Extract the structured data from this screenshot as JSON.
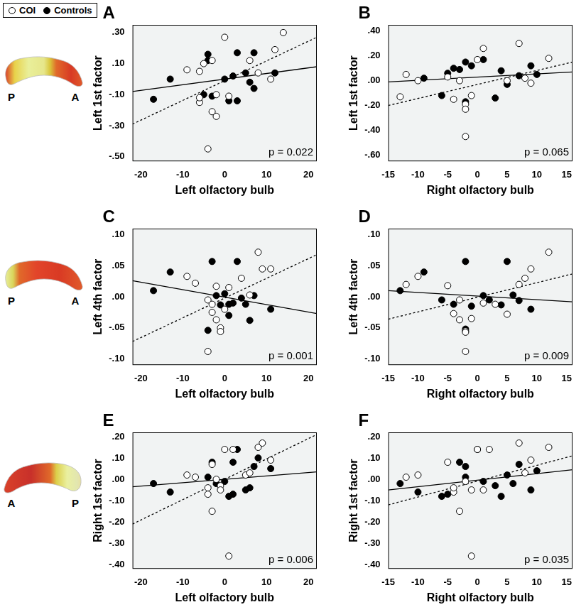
{
  "figure": {
    "legend": [
      {
        "name": "COI",
        "marker": "open_circle"
      },
      {
        "name": "Controls",
        "marker": "filled_circle"
      }
    ],
    "maps": [
      {
        "left": "P",
        "right": "A"
      },
      {
        "left": "P",
        "right": "A"
      },
      {
        "left": "A",
        "right": "P"
      }
    ]
  },
  "chart_data": [
    {
      "type": "scatter",
      "panel": "A",
      "annotation": "p = 0.022",
      "x_label": "Left olfactory bulb",
      "y_label": "Left 1st factor",
      "grid": false,
      "xlim": [
        -22,
        22
      ],
      "xticks": [
        -20,
        -10,
        0,
        10,
        20
      ],
      "ylim": [
        -0.53,
        0.35
      ],
      "yticks": [
        {
          "value": -0.5,
          "label": "-.50"
        },
        {
          "value": -0.3,
          "label": "-.30"
        },
        {
          "value": -0.1,
          "label": "-.10"
        },
        {
          "value": 0.1,
          "label": ".10"
        },
        {
          "value": 0.3,
          "label": ".30"
        }
      ],
      "series": [
        {
          "name": "COI",
          "marker": "open_circle",
          "color": "#000000",
          "x": [
            0,
            14,
            12,
            -6,
            -9,
            -5,
            -3,
            6,
            -6,
            -6,
            -3,
            -2,
            -2,
            1,
            -4,
            8,
            11
          ],
          "values": [
            0.27,
            0.3,
            0.19,
            0.05,
            0.06,
            0.1,
            0.12,
            0.12,
            -0.15,
            -0.12,
            -0.21,
            -0.24,
            -0.1,
            -0.11,
            -0.45,
            0.04,
            0.0
          ]
        },
        {
          "name": "Controls",
          "marker": "filled_circle",
          "color": "#000000",
          "x": [
            -17,
            -13,
            -5,
            -4,
            -4,
            -3,
            0,
            1,
            3,
            3,
            2,
            5,
            6,
            7,
            7,
            12
          ],
          "values": [
            -0.13,
            0.0,
            -0.1,
            0.16,
            0.12,
            -0.11,
            0.0,
            -0.14,
            -0.14,
            0.17,
            0.02,
            0.04,
            -0.02,
            -0.06,
            0.17,
            0.04
          ]
        },
        {
          "type": "line",
          "line_style": "dotted",
          "color": "#000000",
          "x": [
            -22,
            22
          ],
          "values": [
            -0.29,
            0.27
          ]
        },
        {
          "type": "line",
          "line_style": "solid",
          "color": "#000000",
          "x": [
            -22,
            22
          ],
          "values": [
            -0.08,
            0.08
          ]
        }
      ]
    },
    {
      "type": "scatter",
      "panel": "B",
      "annotation": "p = 0.065",
      "x_label": "Right olfactory bulb",
      "y_label": "Left 1st factor",
      "grid": false,
      "xlim": [
        -15,
        16
      ],
      "xticks": [
        -15,
        -10,
        -5,
        0,
        5,
        10,
        15
      ],
      "ylim": [
        -0.65,
        0.45
      ],
      "yticks": [
        {
          "value": -0.6,
          "label": "-.60"
        },
        {
          "value": -0.4,
          "label": "-.40"
        },
        {
          "value": -0.2,
          "label": "-.20"
        },
        {
          "value": 0,
          "label": ".00"
        },
        {
          "value": 0.2,
          "label": ".20"
        },
        {
          "value": 0.4,
          "label": ".40"
        }
      ],
      "series": [
        {
          "name": "COI",
          "marker": "open_circle",
          "color": "#000000",
          "x": [
            -13,
            -12,
            -10,
            -5,
            -4,
            -3,
            -2,
            -2,
            -2,
            0,
            1,
            5,
            7,
            8,
            9,
            12,
            -1
          ],
          "values": [
            -0.13,
            0.05,
            0.0,
            0.03,
            -0.15,
            0.0,
            -0.19,
            -0.23,
            -0.45,
            0.17,
            0.26,
            0.0,
            0.3,
            0.02,
            -0.02,
            0.18,
            -0.12
          ]
        },
        {
          "name": "Controls",
          "marker": "filled_circle",
          "color": "#000000",
          "x": [
            -9,
            -6,
            -4,
            -5,
            -2,
            -2,
            -1,
            1,
            3,
            4,
            5,
            7,
            9,
            10,
            -3
          ],
          "values": [
            0.02,
            -0.12,
            0.1,
            0.06,
            0.15,
            -0.17,
            0.12,
            0.17,
            -0.14,
            0.08,
            -0.03,
            0.04,
            0.12,
            0.05,
            0.09
          ]
        },
        {
          "type": "line",
          "line_style": "dotted",
          "color": "#000000",
          "x": [
            -15,
            16
          ],
          "values": [
            -0.2,
            0.15
          ]
        },
        {
          "type": "line",
          "line_style": "solid",
          "color": "#000000",
          "x": [
            -15,
            16
          ],
          "values": [
            -0.01,
            0.07
          ]
        }
      ]
    },
    {
      "type": "scatter",
      "panel": "C",
      "annotation": "p = 0.001",
      "x_label": "Left olfactory bulb",
      "y_label": "Left 4th factor",
      "grid": false,
      "xlim": [
        -22,
        22
      ],
      "xticks": [
        -20,
        -10,
        0,
        10,
        20
      ],
      "ylim": [
        -0.11,
        0.11
      ],
      "yticks": [
        {
          "value": -0.1,
          "label": "-.10"
        },
        {
          "value": -0.05,
          "label": "-.05"
        },
        {
          "value": 0,
          "label": ".00"
        },
        {
          "value": 0.05,
          "label": ".05"
        },
        {
          "value": 0.1,
          "label": ".10"
        }
      ],
      "series": [
        {
          "name": "COI",
          "marker": "open_circle",
          "color": "#000000",
          "x": [
            -9,
            -7,
            -4,
            -3,
            -2,
            -2,
            -1,
            -1,
            -4,
            1,
            4,
            6,
            8,
            9,
            11,
            -3,
            0
          ],
          "values": [
            0.033,
            0.022,
            -0.005,
            -0.012,
            0.017,
            -0.037,
            -0.05,
            -0.056,
            -0.088,
            0.015,
            0.03,
            0.003,
            0.072,
            0.045,
            0.045,
            -0.025,
            -0.02
          ]
        },
        {
          "name": "Controls",
          "marker": "filled_circle",
          "color": "#000000",
          "x": [
            -17,
            -13,
            -4,
            -3,
            -2,
            0,
            1,
            1,
            2,
            3,
            4,
            5,
            6,
            7,
            11,
            -1
          ],
          "values": [
            0.01,
            0.04,
            -0.054,
            0.057,
            0.002,
            0.005,
            -0.012,
            -0.03,
            -0.01,
            0.057,
            -0.002,
            -0.012,
            -0.038,
            0.002,
            -0.02,
            -0.013
          ]
        },
        {
          "type": "line",
          "line_style": "dotted",
          "color": "#000000",
          "x": [
            -22,
            22
          ],
          "values": [
            -0.072,
            0.068
          ]
        },
        {
          "type": "line",
          "line_style": "solid",
          "color": "#000000",
          "x": [
            -22,
            22
          ],
          "values": [
            0.026,
            -0.027
          ]
        }
      ]
    },
    {
      "type": "scatter",
      "panel": "D",
      "annotation": "p = 0.009",
      "x_label": "Right olfactory bulb",
      "y_label": "Left 4th factor",
      "grid": false,
      "xlim": [
        -15,
        16
      ],
      "xticks": [
        -15,
        -10,
        -5,
        0,
        5,
        10,
        15
      ],
      "ylim": [
        -0.11,
        0.11
      ],
      "yticks": [
        {
          "value": -0.1,
          "label": "-.10"
        },
        {
          "value": -0.05,
          "label": "-.05"
        },
        {
          "value": 0,
          "label": ".00"
        },
        {
          "value": 0.05,
          "label": ".05"
        },
        {
          "value": 0.1,
          "label": ".10"
        }
      ],
      "series": [
        {
          "name": "COI",
          "marker": "open_circle",
          "color": "#000000",
          "x": [
            -12,
            -10,
            -5,
            -4,
            -3,
            -3,
            -2,
            -2,
            -2,
            -1,
            1,
            3,
            5,
            7,
            8,
            9,
            12
          ],
          "values": [
            0.02,
            0.033,
            0.018,
            -0.027,
            -0.005,
            -0.037,
            -0.055,
            -0.057,
            -0.088,
            -0.035,
            -0.01,
            -0.012,
            -0.028,
            0.02,
            0.03,
            0.045,
            0.072
          ]
        },
        {
          "name": "Controls",
          "marker": "filled_circle",
          "color": "#000000",
          "x": [
            -13,
            -9,
            -6,
            -4,
            -2,
            -2,
            -1,
            1,
            2,
            4,
            5,
            6,
            7,
            9
          ],
          "values": [
            0.01,
            0.04,
            -0.005,
            -0.012,
            0.057,
            -0.052,
            -0.015,
            0.002,
            -0.005,
            -0.013,
            0.057,
            0.003,
            -0.006,
            -0.02
          ]
        },
        {
          "type": "line",
          "line_style": "dotted",
          "color": "#000000",
          "x": [
            -15,
            16
          ],
          "values": [
            -0.036,
            0.037
          ]
        },
        {
          "type": "line",
          "line_style": "solid",
          "color": "#000000",
          "x": [
            -15,
            16
          ],
          "values": [
            0.01,
            -0.008
          ]
        }
      ]
    },
    {
      "type": "scatter",
      "panel": "E",
      "annotation": "p = 0.006",
      "x_label": "Left olfactory bulb",
      "y_label": "Right 1st factor",
      "grid": false,
      "xlim": [
        -22,
        22
      ],
      "xticks": [
        -20,
        -10,
        0,
        10,
        20
      ],
      "ylim": [
        -0.42,
        0.22
      ],
      "yticks": [
        {
          "value": -0.4,
          "label": "-.40"
        },
        {
          "value": -0.3,
          "label": "-.30"
        },
        {
          "value": -0.2,
          "label": "-.20"
        },
        {
          "value": -0.1,
          "label": "-.10"
        },
        {
          "value": 0,
          "label": ".00"
        },
        {
          "value": 0.1,
          "label": ".10"
        },
        {
          "value": 0.2,
          "label": ".20"
        }
      ],
      "series": [
        {
          "name": "COI",
          "marker": "open_circle",
          "color": "#000000",
          "x": [
            -9,
            -7,
            -4,
            -4,
            -3,
            -3,
            -1,
            0,
            1,
            2,
            5,
            6,
            8,
            9,
            11,
            -2,
            -1
          ],
          "values": [
            0.02,
            0.01,
            -0.04,
            -0.07,
            0.07,
            -0.15,
            -0.03,
            0.14,
            -0.36,
            0.14,
            0.02,
            0.03,
            0.15,
            0.17,
            0.09,
            0.0,
            -0.05
          ]
        },
        {
          "name": "Controls",
          "marker": "filled_circle",
          "color": "#000000",
          "x": [
            -17,
            -13,
            -4,
            -3,
            -2,
            0,
            1,
            2,
            2,
            3,
            5,
            6,
            7,
            8,
            11
          ],
          "values": [
            -0.02,
            -0.06,
            0.01,
            0.08,
            -0.02,
            -0.01,
            -0.08,
            -0.07,
            0.08,
            0.14,
            -0.05,
            -0.04,
            0.06,
            0.1,
            0.05
          ]
        },
        {
          "type": "line",
          "line_style": "dotted",
          "color": "#000000",
          "x": [
            -22,
            22
          ],
          "values": [
            -0.21,
            0.21
          ]
        },
        {
          "type": "line",
          "line_style": "solid",
          "color": "#000000",
          "x": [
            -22,
            22
          ],
          "values": [
            -0.035,
            0.035
          ]
        }
      ]
    },
    {
      "type": "scatter",
      "panel": "F",
      "annotation": "p = 0.035",
      "x_label": "Right olfactory bulb",
      "y_label": "Right 1st factor",
      "grid": false,
      "xlim": [
        -15,
        16
      ],
      "xticks": [
        -15,
        -10,
        -5,
        0,
        5,
        10,
        15
      ],
      "ylim": [
        -0.42,
        0.22
      ],
      "yticks": [
        {
          "value": -0.4,
          "label": "-.40"
        },
        {
          "value": -0.3,
          "label": "-.30"
        },
        {
          "value": -0.2,
          "label": "-.20"
        },
        {
          "value": -0.1,
          "label": "-.10"
        },
        {
          "value": 0,
          "label": ".00"
        },
        {
          "value": 0.1,
          "label": ".10"
        },
        {
          "value": 0.2,
          "label": ".20"
        }
      ],
      "series": [
        {
          "name": "COI",
          "marker": "open_circle",
          "color": "#000000",
          "x": [
            -12,
            -10,
            -5,
            -4,
            -4,
            -3,
            -2,
            -1,
            -1,
            0,
            2,
            7,
            8,
            9,
            12,
            1
          ],
          "values": [
            0.01,
            0.02,
            0.08,
            -0.06,
            -0.04,
            -0.15,
            -0.01,
            -0.36,
            -0.05,
            0.14,
            0.14,
            0.17,
            0.03,
            0.09,
            0.15,
            -0.05
          ]
        },
        {
          "name": "Controls",
          "marker": "filled_circle",
          "color": "#000000",
          "x": [
            -13,
            -10,
            -6,
            -5,
            -3,
            -2,
            -2,
            0,
            1,
            3,
            4,
            5,
            6,
            7,
            9,
            10
          ],
          "values": [
            -0.02,
            -0.06,
            -0.08,
            -0.07,
            0.08,
            0.06,
            0.01,
            0.14,
            -0.01,
            -0.03,
            -0.08,
            0.02,
            -0.02,
            0.07,
            -0.05,
            0.04
          ]
        },
        {
          "type": "line",
          "line_style": "dotted",
          "color": "#000000",
          "x": [
            -15,
            16
          ],
          "values": [
            -0.12,
            0.11
          ]
        },
        {
          "type": "line",
          "line_style": "solid",
          "color": "#000000",
          "x": [
            -15,
            16
          ],
          "values": [
            -0.05,
            0.045
          ]
        }
      ]
    }
  ]
}
